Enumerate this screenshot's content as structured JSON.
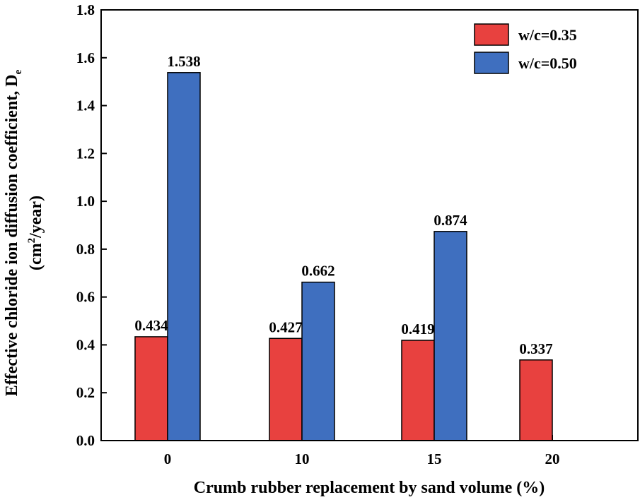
{
  "chart_data": {
    "type": "bar",
    "title": "",
    "xlabel": "Crumb rubber replacement by sand volume (%)",
    "ylabel_line1_prefix": "Effective chloride ion diffusion coefficient, D",
    "ylabel_line1_sub": "e",
    "ylabel_line2_prefix": "(cm",
    "ylabel_line2_sup": "2",
    "ylabel_line2_suffix": "/year)",
    "categories": [
      "0",
      "10",
      "15",
      "20"
    ],
    "ylim": [
      0,
      1.8
    ],
    "yticks": [
      "0.0",
      "0.2",
      "0.4",
      "0.6",
      "0.8",
      "1.0",
      "1.2",
      "1.4",
      "1.6",
      "1.8"
    ],
    "legend_position": "top-right",
    "series": [
      {
        "name": "w/c=0.35",
        "color": "#e8413f",
        "values": [
          0.434,
          0.427,
          0.419,
          0.337
        ],
        "labels": [
          "0.434",
          "0.427",
          "0.419",
          "0.337"
        ]
      },
      {
        "name": "w/c=0.50",
        "color": "#3f6fbf",
        "values": [
          1.538,
          0.662,
          0.874,
          null
        ],
        "labels": [
          "1.538",
          "0.662",
          "0.874",
          ""
        ]
      }
    ]
  }
}
